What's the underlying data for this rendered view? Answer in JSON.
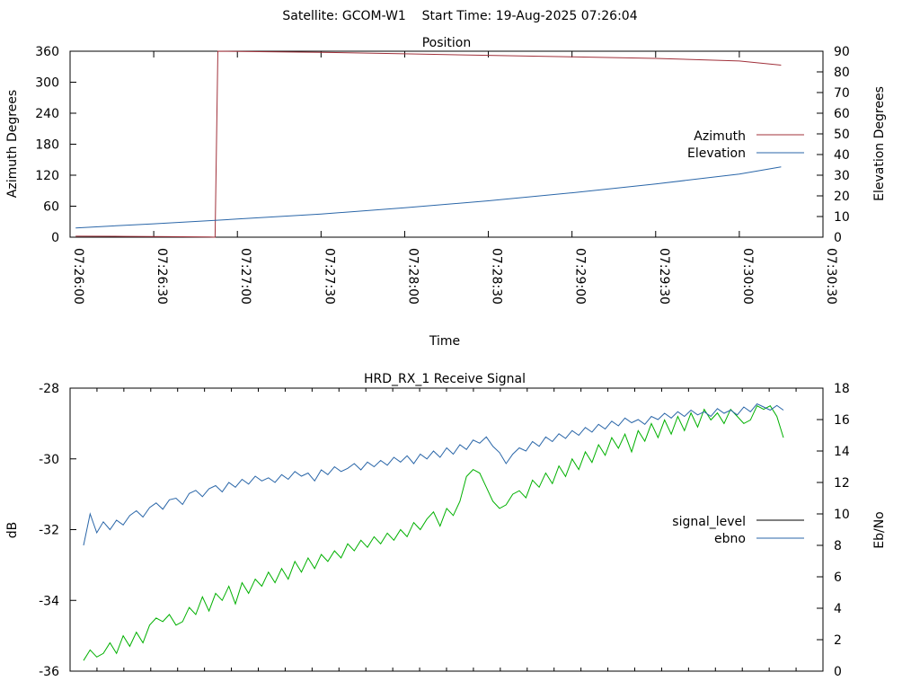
{
  "page_title": "Satellite: GCOM-W1    Start Time: 19-Aug-2025 07:26:04",
  "chart_data": [
    {
      "type": "line",
      "title": "Position",
      "xlabel": "Time",
      "ylabel": "Azimuth Degrees",
      "y2label": "Elevation Degrees",
      "x_ticks": [
        "07:26:00",
        "07:26:30",
        "07:27:00",
        "07:27:30",
        "07:28:00",
        "07:28:30",
        "07:29:00",
        "07:29:30",
        "07:30:00",
        "07:30:30"
      ],
      "xlim": [
        "07:26:00",
        "07:30:30"
      ],
      "ylim": [
        0,
        360
      ],
      "y_ticks": [
        0,
        60,
        120,
        180,
        240,
        300,
        360
      ],
      "y2lim": [
        0,
        90
      ],
      "y2_ticks": [
        0,
        10,
        20,
        30,
        40,
        50,
        60,
        70,
        80,
        90
      ],
      "legend_position": "right",
      "series": [
        {
          "name": "Azimuth",
          "color": "#a0303a",
          "axis": "left",
          "x": [
            "07:26:02",
            "07:26:20",
            "07:26:35",
            "07:26:50",
            "07:26:52",
            "07:26:53",
            "07:27:30",
            "07:28:00",
            "07:28:30",
            "07:29:00",
            "07:29:30",
            "07:30:00",
            "07:30:15"
          ],
          "values": [
            2,
            1.5,
            1,
            0.5,
            0,
            360,
            358,
            355,
            352,
            349,
            346,
            341,
            333
          ]
        },
        {
          "name": "Elevation",
          "color": "#2a66a8",
          "axis": "right",
          "x": [
            "07:26:02",
            "07:26:30",
            "07:27:00",
            "07:27:30",
            "07:28:00",
            "07:28:30",
            "07:29:00",
            "07:29:30",
            "07:30:00",
            "07:30:15"
          ],
          "values": [
            4.5,
            6.5,
            8.8,
            11.2,
            14.2,
            17.6,
            21.5,
            25.8,
            30.5,
            34
          ]
        }
      ]
    },
    {
      "type": "line",
      "title": "HRD_RX_1 Receive Signal",
      "ylabel": "dB",
      "y2label": "Eb/No",
      "ylim": [
        -36,
        -28
      ],
      "y_ticks": [
        -36,
        -34,
        -32,
        -30,
        -28
      ],
      "y2lim": [
        0,
        18
      ],
      "y2_ticks": [
        0,
        2,
        4,
        6,
        8,
        10,
        12,
        14,
        16,
        18
      ],
      "x_minor_ticks": 27,
      "legend_position": "right",
      "series": [
        {
          "name": "signal_level",
          "color": "#00b000",
          "axis": "left",
          "values": [
            -35.7,
            -35.4,
            -35.6,
            -35.5,
            -35.2,
            -35.5,
            -35.0,
            -35.3,
            -34.9,
            -35.2,
            -34.7,
            -34.5,
            -34.6,
            -34.4,
            -34.7,
            -34.6,
            -34.2,
            -34.4,
            -33.9,
            -34.3,
            -33.8,
            -34.0,
            -33.6,
            -34.1,
            -33.5,
            -33.8,
            -33.4,
            -33.6,
            -33.2,
            -33.5,
            -33.1,
            -33.4,
            -32.9,
            -33.2,
            -32.8,
            -33.1,
            -32.7,
            -32.9,
            -32.6,
            -32.8,
            -32.4,
            -32.6,
            -32.3,
            -32.5,
            -32.2,
            -32.4,
            -32.1,
            -32.3,
            -32.0,
            -32.2,
            -31.8,
            -32.0,
            -31.7,
            -31.5,
            -31.9,
            -31.4,
            -31.6,
            -31.2,
            -30.5,
            -30.3,
            -30.4,
            -30.8,
            -31.2,
            -31.4,
            -31.3,
            -31.0,
            -30.9,
            -31.1,
            -30.6,
            -30.8,
            -30.4,
            -30.7,
            -30.2,
            -30.5,
            -30.0,
            -30.3,
            -29.8,
            -30.1,
            -29.6,
            -29.9,
            -29.4,
            -29.7,
            -29.3,
            -29.8,
            -29.2,
            -29.5,
            -29.0,
            -29.4,
            -28.9,
            -29.3,
            -28.8,
            -29.2,
            -28.7,
            -29.1,
            -28.6,
            -28.9,
            -28.7,
            -29.0,
            -28.6,
            -28.8,
            -29.0,
            -28.9,
            -28.5,
            -28.6,
            -28.5,
            -28.8,
            -29.4
          ]
        },
        {
          "name": "ebno",
          "color": "#2a66a8",
          "axis": "right",
          "values": [
            8.0,
            10.0,
            8.8,
            9.5,
            9.0,
            9.6,
            9.3,
            9.9,
            10.2,
            9.8,
            10.4,
            10.7,
            10.3,
            10.9,
            11.0,
            10.6,
            11.3,
            11.5,
            11.1,
            11.6,
            11.8,
            11.4,
            12.0,
            11.7,
            12.2,
            11.9,
            12.4,
            12.1,
            12.3,
            12.0,
            12.5,
            12.2,
            12.7,
            12.4,
            12.6,
            12.1,
            12.8,
            12.5,
            13.0,
            12.7,
            12.9,
            13.2,
            12.8,
            13.3,
            13.0,
            13.4,
            13.1,
            13.6,
            13.3,
            13.7,
            13.2,
            13.8,
            13.5,
            14.0,
            13.6,
            14.2,
            13.8,
            14.4,
            14.1,
            14.7,
            14.5,
            14.9,
            14.3,
            13.9,
            13.2,
            13.8,
            14.2,
            14.0,
            14.6,
            14.3,
            14.9,
            14.6,
            15.1,
            14.8,
            15.3,
            15.0,
            15.5,
            15.2,
            15.7,
            15.4,
            15.9,
            15.6,
            16.1,
            15.8,
            16.0,
            15.7,
            16.2,
            16.0,
            16.4,
            16.1,
            16.5,
            16.2,
            16.6,
            16.3,
            16.5,
            16.2,
            16.7,
            16.4,
            16.6,
            16.3,
            16.8,
            16.5,
            17.0,
            16.8,
            16.6,
            16.9,
            16.6
          ]
        }
      ]
    }
  ]
}
